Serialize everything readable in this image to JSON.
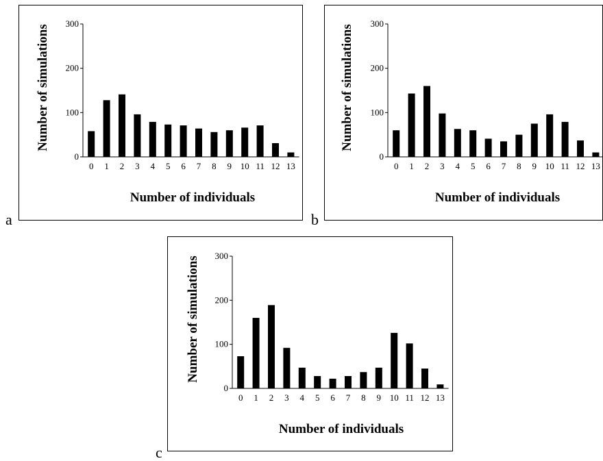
{
  "panel_letters": [
    "a",
    "b",
    "c"
  ],
  "chart_data": [
    {
      "type": "bar",
      "panel": "a",
      "title": "",
      "xlabel": "Number of individuals",
      "ylabel": "Number of simulations",
      "categories": [
        "0",
        "1",
        "2",
        "3",
        "4",
        "5",
        "6",
        "7",
        "8",
        "9",
        "10",
        "11",
        "12",
        "13"
      ],
      "values": [
        58,
        128,
        141,
        96,
        79,
        73,
        71,
        64,
        56,
        60,
        66,
        71,
        31,
        10
      ],
      "ylim": [
        0,
        300
      ],
      "yticks": [
        "0",
        "100",
        "200",
        "300"
      ],
      "grid": false,
      "color": "#000000"
    },
    {
      "type": "bar",
      "panel": "b",
      "title": "",
      "xlabel": "Number of individuals",
      "ylabel": "Number of simulations",
      "categories": [
        "0",
        "1",
        "2",
        "3",
        "4",
        "5",
        "6",
        "7",
        "8",
        "9",
        "10",
        "11",
        "12",
        "13"
      ],
      "values": [
        60,
        143,
        160,
        98,
        63,
        60,
        41,
        35,
        50,
        75,
        96,
        79,
        37,
        10
      ],
      "ylim": [
        0,
        300
      ],
      "yticks": [
        "0",
        "100",
        "200",
        "300"
      ],
      "grid": false,
      "color": "#000000"
    },
    {
      "type": "bar",
      "panel": "c",
      "title": "",
      "xlabel": "Number of individuals",
      "ylabel": "Number of simulations",
      "categories": [
        "0",
        "1",
        "2",
        "3",
        "4",
        "5",
        "6",
        "7",
        "8",
        "9",
        "10",
        "11",
        "12",
        "13"
      ],
      "values": [
        73,
        160,
        189,
        92,
        47,
        28,
        22,
        28,
        37,
        47,
        126,
        102,
        45,
        9
      ],
      "ylim": [
        0,
        300
      ],
      "yticks": [
        "0",
        "100",
        "200",
        "300"
      ],
      "grid": false,
      "color": "#000000"
    }
  ]
}
